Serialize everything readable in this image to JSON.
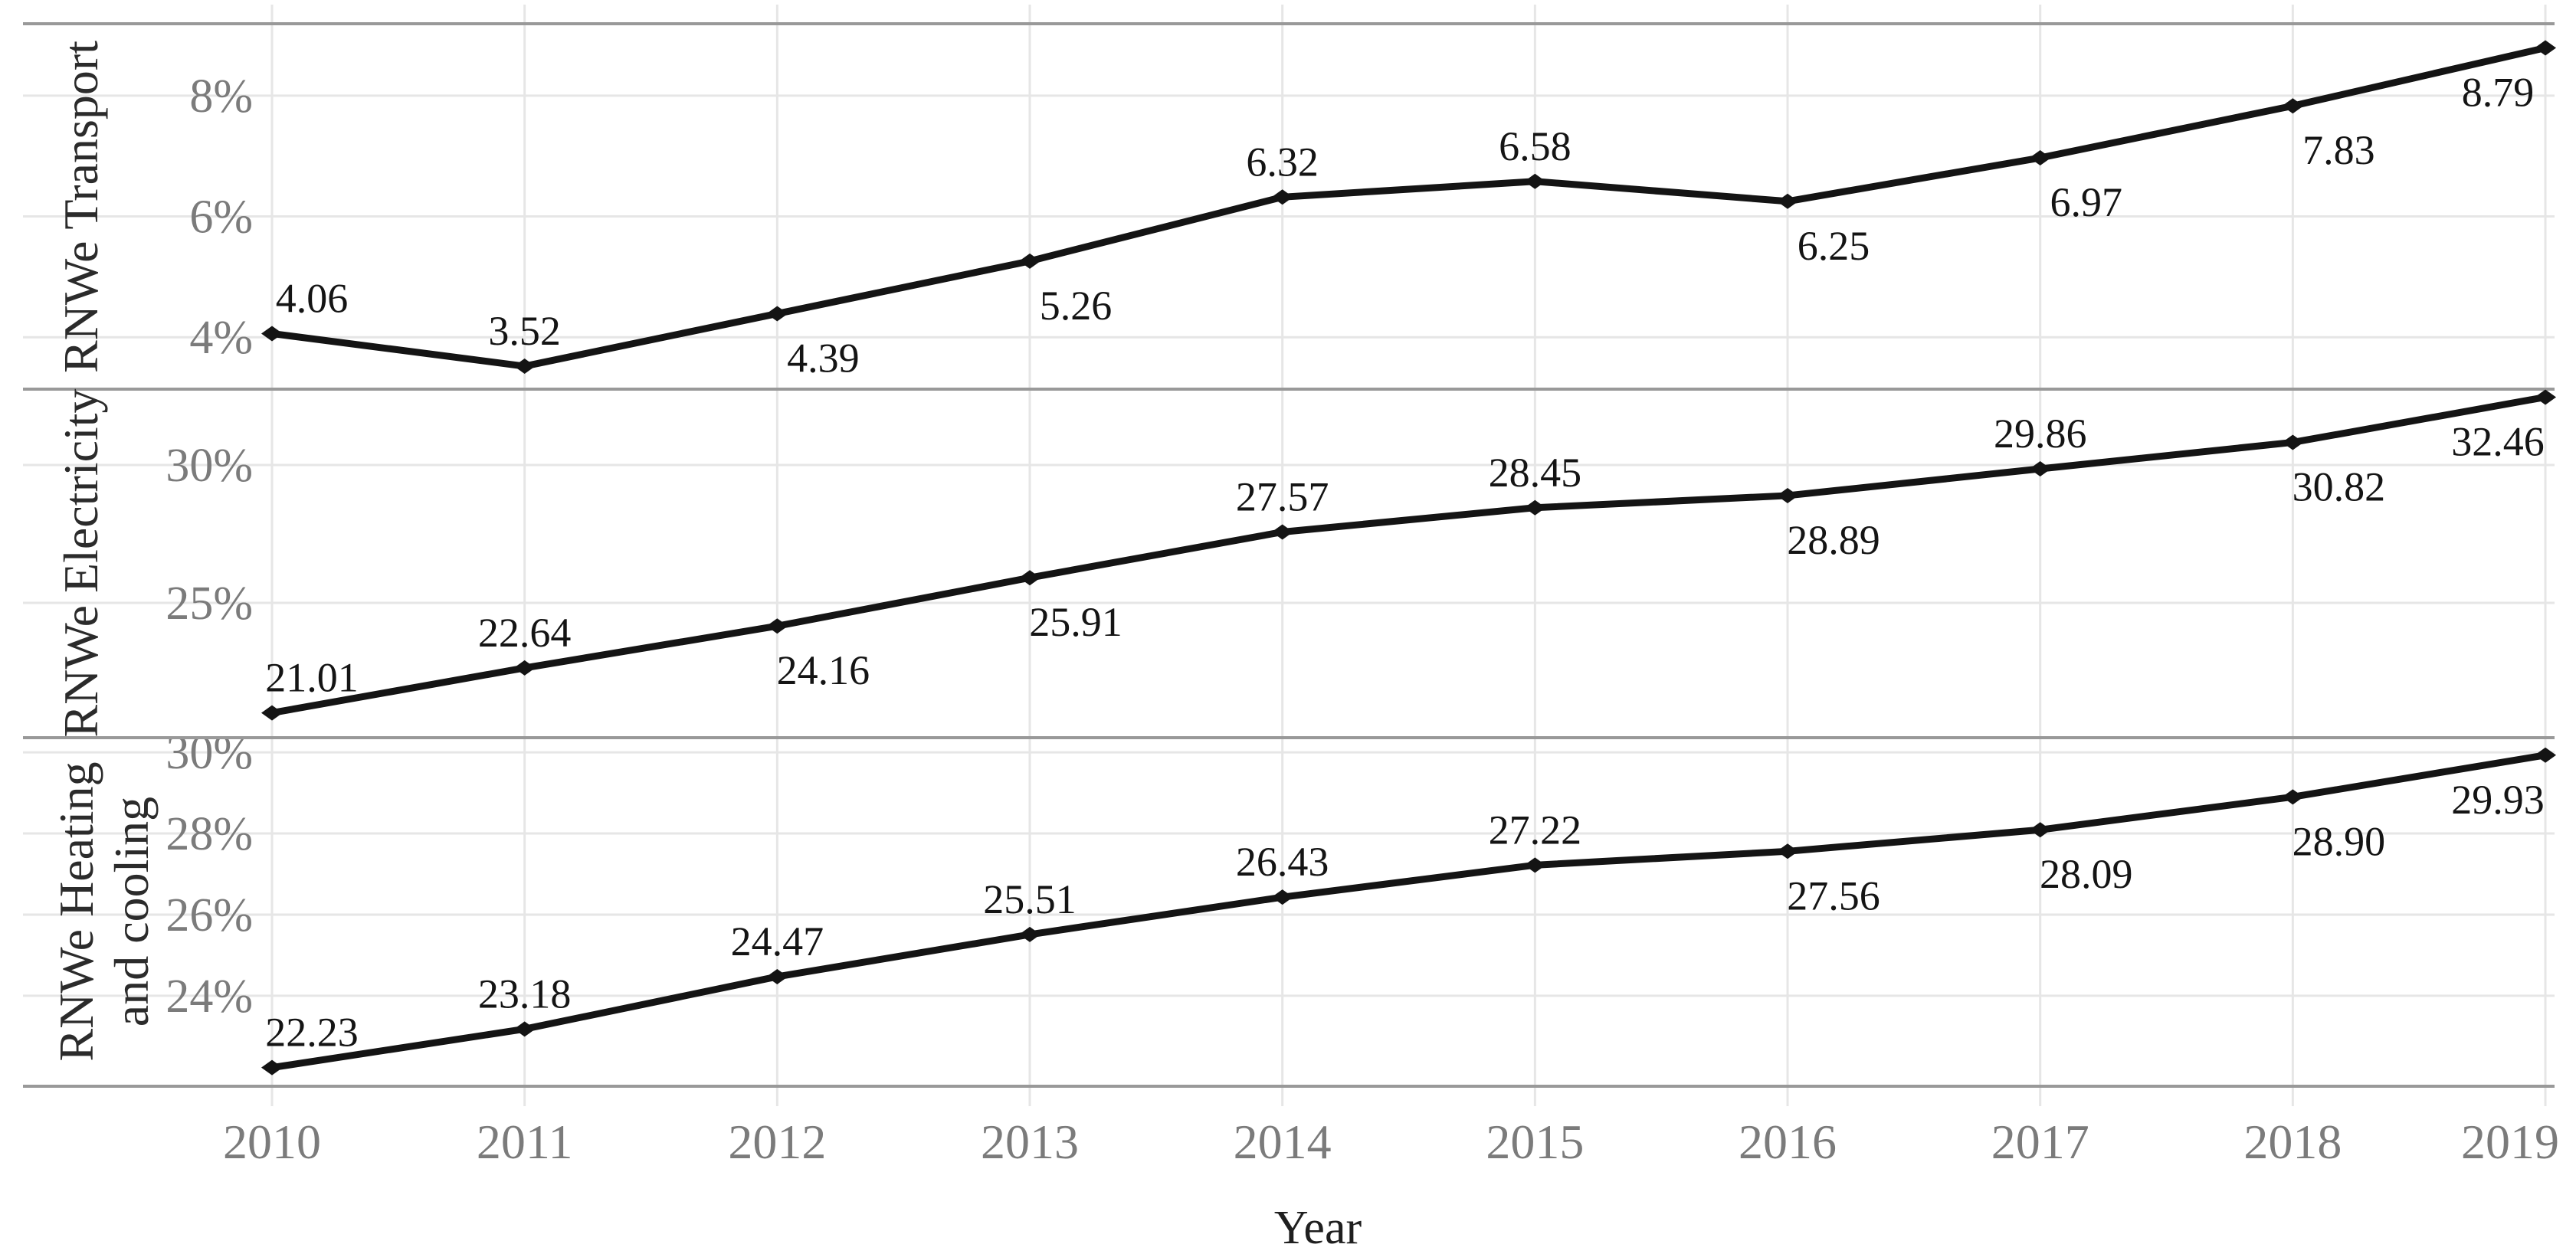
{
  "chart_data": {
    "type": "line",
    "title": "",
    "xlabel": "Year",
    "ylabel": "",
    "x": [
      "2010",
      "2011",
      "2012",
      "2013",
      "2014",
      "2015",
      "2016",
      "2017",
      "2018",
      "2019"
    ],
    "grid": true,
    "legend": false,
    "facets": "3 stacked panels sharing x axis",
    "series": [
      {
        "name": "RNWe Transport",
        "name_lines": [
          "RNWe Transport"
        ],
        "values": [
          4.06,
          3.52,
          4.39,
          5.26,
          6.32,
          6.58,
          6.25,
          6.97,
          7.83,
          8.79
        ],
        "data_labels": [
          "4.06",
          "3.52",
          "4.39",
          "5.26",
          "6.32",
          "6.58",
          "6.25",
          "6.97",
          "7.83",
          "8.79"
        ],
        "data_label_position": [
          "above",
          "above",
          "below",
          "below",
          "above",
          "above",
          "below",
          "below",
          "below",
          "below"
        ],
        "yticks": [
          {
            "v": 4,
            "label": "4%"
          },
          {
            "v": 6,
            "label": "6%"
          },
          {
            "v": 8,
            "label": "8%"
          }
        ],
        "ylim": [
          3.14,
          9.19
        ]
      },
      {
        "name": "RNWe Electricity",
        "name_lines": [
          "RNWe Electricity"
        ],
        "values": [
          21.01,
          22.64,
          24.16,
          25.91,
          27.57,
          28.45,
          28.89,
          29.86,
          30.82,
          32.46
        ],
        "data_labels": [
          "21.01",
          "22.64",
          "24.16",
          "25.91",
          "27.57",
          "28.45",
          "28.89",
          "29.86",
          "30.82",
          "32.46"
        ],
        "data_label_position": [
          "above",
          "above",
          "below",
          "below",
          "above",
          "above",
          "below",
          "above",
          "below",
          "below"
        ],
        "yticks": [
          {
            "v": 25,
            "label": "25%"
          },
          {
            "v": 30,
            "label": "30%"
          }
        ],
        "ylim": [
          20.11,
          32.75
        ]
      },
      {
        "name": "RNWe Heating and cooling",
        "name_lines": [
          "RNWe Heating",
          "and cooling"
        ],
        "values": [
          22.23,
          23.18,
          24.47,
          25.51,
          26.43,
          27.22,
          27.56,
          28.09,
          28.9,
          29.93
        ],
        "data_labels": [
          "22.23",
          "23.18",
          "24.47",
          "25.51",
          "26.43",
          "27.22",
          "27.56",
          "28.09",
          "28.90",
          "29.93"
        ],
        "data_label_position": [
          "above",
          "above",
          "above",
          "above",
          "above",
          "above",
          "below",
          "below",
          "below",
          "below"
        ],
        "yticks": [
          {
            "v": 24,
            "label": "24%"
          },
          {
            "v": 26,
            "label": "26%"
          },
          {
            "v": 28,
            "label": "28%"
          },
          {
            "v": 30,
            "label": "30%"
          }
        ],
        "ylim": [
          21.77,
          30.36
        ]
      }
    ],
    "styles": {
      "background": "#ffffff",
      "line_color": "#141414",
      "marker_color": "#141414",
      "data_label_color": "#141414",
      "tick_label_color": "#7b7b7b",
      "axis_title_color": "#2b2b2b",
      "gridline_color": "#e6e6e6",
      "panel_border_color": "#999999"
    }
  }
}
